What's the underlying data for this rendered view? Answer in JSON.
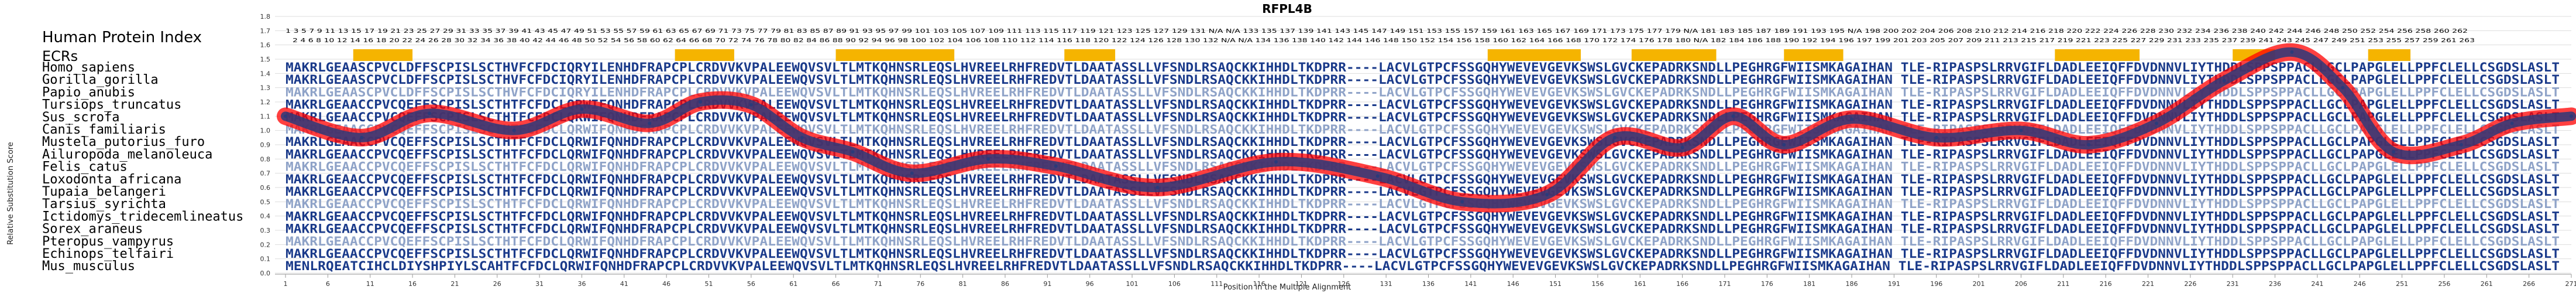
{
  "chart_data": {
    "type": "line",
    "title": "RFPL4B",
    "xlabel": "Position in the Multiple Alignment",
    "ylabel": "Relative Substitution Score",
    "xlim": [
      1,
      271
    ],
    "ylim": [
      0,
      1.8
    ],
    "y_ticks": [
      "0.0",
      "0.1",
      "0.2",
      "0.3",
      "0.4",
      "0.5",
      "0.6",
      "0.7",
      "0.8",
      "0.9",
      "1.0",
      "1.1",
      "1.2",
      "1.3",
      "1.4",
      "1.5",
      "1.6",
      "1.7",
      "1.8"
    ],
    "x_ticks": [
      1,
      6,
      11,
      16,
      21,
      26,
      31,
      36,
      41,
      46,
      51,
      56,
      61,
      66,
      71,
      76,
      81,
      86,
      91,
      96,
      101,
      106,
      111,
      116,
      121,
      126,
      131,
      136,
      141,
      146,
      151,
      156,
      161,
      166,
      171,
      176,
      181,
      186,
      191,
      196,
      201,
      206,
      211,
      216,
      221,
      226,
      231,
      236,
      241,
      246,
      251,
      256,
      261,
      266,
      271
    ],
    "grid": true,
    "series": [
      {
        "x": [
          1,
          10,
          18,
          28,
          36,
          44,
          50,
          56,
          62,
          68,
          75,
          84,
          92,
          104,
          118,
          130,
          140,
          150,
          158,
          166,
          172,
          178,
          186,
          196,
          206,
          214,
          222,
          230,
          238,
          244,
          250,
          258,
          264,
          271
        ],
        "values": [
          1.1,
          0.95,
          1.12,
          1.0,
          1.15,
          1.05,
          1.2,
          1.18,
          0.95,
          0.85,
          0.7,
          0.8,
          0.75,
          0.6,
          0.78,
          0.68,
          0.5,
          0.55,
          0.95,
          0.88,
          1.1,
          0.9,
          1.08,
          0.95,
          1.0,
          0.9,
          1.05,
          1.35,
          1.55,
          1.3,
          0.85,
          0.9,
          1.05,
          1.1
        ]
      }
    ],
    "ecr_blocks": [
      [
        9,
        16
      ],
      [
        47,
        54
      ],
      [
        66,
        80
      ],
      [
        93,
        99
      ],
      [
        143,
        154
      ],
      [
        160,
        170
      ],
      [
        178,
        185
      ],
      [
        210,
        220
      ],
      [
        231,
        236
      ],
      [
        247,
        252
      ]
    ]
  },
  "header": {
    "human_protein_index": "Human Protein Index",
    "ecrs": "ECRs",
    "index_line_1": "1 3 5 7 9 11 13 15 17 19 21 23 25 27 29 31 33 35 37 39 41 43 45 47 49 51 53 55 57 59 61 63 65 67 69 71 73 75 77 79 81 83 85 87 89 91 93 95 97 99 101 103 105 107 109 111 113 115 117 119 121 123 125 127 129 131 N/A N/A 133 135 137 139 141 143 145 147 149 151 153 155 157 159 161 163 165 167 169 171 173 175 177 179 N/A 181 183 185 187 189 191 193 195 N/A 198 200 202 204 206 208 210 212 214 216 218 220 222 224 226 228 230 232 234 236 238 240 242 244 246 248 250 252 254 256 258 260 262",
    "index_line_2": "2 4 6 8 10 12 14 16 18 20 22 24 26 28 30 32 34 36 38 40 42 44 46 48 50 52 54 56 58 60 62 64 66 68 70 72 74 76 78 80 82 84 86 88 90 92 94 96 98 100 102 104 106 108 110 112 114 116 118 120 122 124 126 128 130 132 N/A N/A 134 136 138 140 142 144 146 148 150 152 154 156 158 160 162 164 166 168 170 172 174 176 178 180 N/A 182 184 186 188 190 192 194 196 197 199 201 203 205 207 209 211 213 215 217 219 221 223 225 227 229 231 233 235 237 239 241 243 245 247 249 251 253 255 257 259 261 263"
  },
  "alignment": [
    {
      "species": "Homo_sapiens",
      "seq": "MAKRLGEAASCPVCLDFFSCPISLSCTHVFCFDCIQRYILENHDFRAPCPLCRDVVKVPALEEWQVSVLTLMTKQHNSRLEQSLHVREELRHFREDVTLDAATASSLLVFSNDLRSAQCKKIHHDLTKDPRR----LACVLGTPCFSSGQHYWEVEVGEVKSWSLGVCKEPADRKSNDLLPEGHRGFWIISMKAGAIHAN TLE-RIPASPSLRRVGIFLDADLEEIQFFDVDNNVLIYTHDDLSPPSPPACLLGCLPAPGLELLPPFCLELLCSGDSLASLT"
    },
    {
      "species": "Gorilla_gorilla",
      "seq": "MAKRLGEAASCPVCLDFFSCPISLSCTHVFCFDCIQRYILENHDFRAPCPLCRDVVKVPALEEWQVSVLTLMTKQHNSRLEQSLHVREELRHFREDVTLDAATASSLLVFSNDLRSAQCKKIHHDLTKDPRR----LACVLGTPCFSSGQHYWEVEVGEVKSWSLGVCKEPADRKSNDLLPEGHRGFWIISMKAGAIHAN TLE-RIPASPSLRRVGIFLDADLEEIQFFDVDNNVLIYTHDDLSPPSPPACLLGCLPAPGLELLPPFCLELLCSGDSLASLT"
    },
    {
      "species": "Papio_anubis",
      "seq": "MAKRLGEAASCPVCLDFFSCPISLSCTHVFCFDCIQRYILENHDFRAPCPLCRDVVKVPALEEWQVSVLTLMTKQHNSRLEQSLHVREELRHFREDVTLDAATASSLLVFSNDLRSAQCKKIHHDLTKDPRR----LACVLGTPCFSSGQHYWEVEVGEVKSWSLGVCKEPADRKSNDLLPEGHRGFWIISMKAGAIHAN TLE-RIPASPSLRRVGIFLDADLEEIQFFDVDNNVLIYTHDDLSPPSPPACLLGCLPAPGLELLPPFCLELLCSGDSLASLT"
    },
    {
      "species": "Tursiops_truncatus",
      "seq": "MAKRLGEAACCPVCQEFFSCPISLSCTHTFCFDCLQRWIFQNHDFRAPCPLCRDVVKVPALEEWQVSVLTLMTKQHNSRLEQSLHVREELRHFREDVTLDAATASSLLVFSNDLRSAQCKKIHHDLTKDPRR----LACVLGTPCFSSGQHYWEVEVGEVKSWSLGVCKEPADRKSNDLLPEGHRGFWIISMKAGAIHAN TLE-RIPASPSLRRVGIFLDADLEEIQFFDVDNNVLIYTHDDLSPPSPPACLLGCLPAPGLELLPPFCLELLCSGDSLASLT"
    },
    {
      "species": "Sus_scrofa",
      "seq": "MAKRLGEAACCPVCQEFFSCPISLSCTHTFCFDCLQRWIFQNHDFRAPCPLCRDVVKVPALEEWQVSVLTLMTKQHNSRLEQSLHVREELRHFREDVTLDAATASSLLVFSNDLRSAQCKKIHHDLTKDPRR----LACVLGTPCFSSGQHYWEVEVGEVKSWSLGVCKEPADRKSNDLLPEGHRGFWIISMKAGAIHAN TLE-RIPASPSLRRVGIFLDADLEEIQFFDVDNNVLIYTHDDLSPPSPPACLLGCLPAPGLELLPPFCLELLCSGDSLASLT"
    },
    {
      "species": "Canis_familiaris",
      "seq": "MAKRLGEAACCPVCQEFFSCPISLSCTHTFCFDCLQRWIFQNHDFRAPCPLCRDVVKVPALEEWQVSVLTLMTKQHNSRLEQSLHVREELRHFREDVTLDAATASSLLVFSNDLRSAQCKKIHHDLTKDPRR----LACVLGTPCFSSGQHYWEVEVGEVKSWSLGVCKEPADRKSNDLLPEGHRGFWIISMKAGAIHAN TLE-RIPASPSLRRVGIFLDADLEEIQFFDVDNNVLIYTHDDLSPPSPPACLLGCLPAPGLELLPPFCLELLCSGDSLASLT"
    },
    {
      "species": "Mustela_putorius_furo",
      "seq": "MAKRLGEAACCPVCQEFFSCPISLSCTHTFCFDCLQRWIFQNHDFRAPCPLCRDVVKVPALEEWQVSVLTLMTKQHNSRLEQSLHVREELRHFREDVTLDAATASSLLVFSNDLRSAQCKKIHHDLTKDPRR----LACVLGTPCFSSGQHYWEVEVGEVKSWSLGVCKEPADRKSNDLLPEGHRGFWIISMKAGAIHAN TLE-RIPASPSLRRVGIFLDADLEEIQFFDVDNNVLIYTHDDLSPPSPPACLLGCLPAPGLELLPPFCLELLCSGDSLASLT"
    },
    {
      "species": "Ailuropoda_melanoleuca",
      "seq": "MAKRLGEAACCPVCQEFFSCPISLSCTHTFCFDCLQRWIFQNHDFRAPCPLCRDVVKVPALEEWQVSVLTLMTKQHNSRLEQSLHVREELRHFREDVTLDAATASSLLVFSNDLRSAQCKKIHHDLTKDPRR----LACVLGTPCFSSGQHYWEVEVGEVKSWSLGVCKEPADRKSNDLLPEGHRGFWIISMKAGAIHAN TLE-RIPASPSLRRVGIFLDADLEEIQFFDVDNNVLIYTHDDLSPPSPPACLLGCLPAPGLELLPPFCLELLCSGDSLASLT"
    },
    {
      "species": "Felis_catus",
      "seq": "MAKRLGEAACCPVCQEFFSCPISLSCTHTFCFDCLQRWIFQNHDFRAPCPLCRDVVKVPALEEWQVSVLTLMTKQHNSRLEQSLHVREELRHFREDVTLDAATASSLLVFSNDLRSAQCKKIHHDLTKDPRR----LACVLGTPCFSSGQHYWEVEVGEVKSWSLGVCKEPADRKSNDLLPEGHRGFWIISMKAGAIHAN TLE-RIPASPSLRRVGIFLDADLEEIQFFDVDNNVLIYTHDDLSPPSPPACLLGCLPAPGLELLPPFCLELLCSGDSLASLT"
    },
    {
      "species": "Loxodonta_africana",
      "seq": "MAKRLGEAACCPVCQEFFSCPISLSCTHTFCFDCLQRWIFQNHDFRAPCPLCRDVVKVPALEEWQVSVLTLMTKQHNSRLEQSLHVREELRHFREDVTLDAATASSLLVFSNDLRSAQCKKIHHDLTKDPRR----LACVLGTPCFSSGQHYWEVEVGEVKSWSLGVCKEPADRKSNDLLPEGHRGFWIISMKAGAIHAN TLE-RIPASPSLRRVGIFLDADLEEIQFFDVDNNVLIYTHDDLSPPSPPACLLGCLPAPGLELLPPFCLELLCSGDSLASLT"
    },
    {
      "species": "Tupaia_belangeri",
      "seq": "MAKRLGEAACCPVCQEFFSCPISLSCTHTFCFDCLQRWIFQNHDFRAPCPLCRDVVKVPALEEWQVSVLTLMTKQHNSRLEQSLHVREELRHFREDVTLDAATASSLLVFSNDLRSAQCKKIHHDLTKDPRR----LACVLGTPCFSSGQHYWEVEVGEVKSWSLGVCKEPADRKSNDLLPEGHRGFWIISMKAGAIHAN TLE-RIPASPSLRRVGIFLDADLEEIQFFDVDNNVLIYTHDDLSPPSPPACLLGCLPAPGLELLPPFCLELLCSGDSLASLT"
    },
    {
      "species": "Tarsius_syrichta",
      "seq": "MAKRLGEAACCPVCQEFFSCPISLSCTHTFCFDCLQRWIFQNHDFRAPCPLCRDVVKVPALEEWQVSVLTLMTKQHNSRLEQSLHVREELRHFREDVTLDAATASSLLVFSNDLRSAQCKKIHHDLTKDPRR----LACVLGTPCFSSGQHYWEVEVGEVKSWSLGVCKEPADRKSNDLLPEGHRGFWIISMKAGAIHAN TLE-RIPASPSLRRVGIFLDADLEEIQFFDVDNNVLIYTHDDLSPPSPPACLLGCLPAPGLELLPPFCLELLCSGDSLASLT"
    },
    {
      "species": "Ictidomys_tridecemlineatus",
      "seq": "MAKRLGEAACCPVCQEFFSCPISLSCTHTFCFDCLQRWIFQNHDFRAPCPLCRDVVKVPALEEWQVSVLTLMTKQHNSRLEQSLHVREELRHFREDVTLDAATASSLLVFSNDLRSAQCKKIHHDLTKDPRR----LACVLGTPCFSSGQHYWEVEVGEVKSWSLGVCKEPADRKSNDLLPEGHRGFWIISMKAGAIHAN TLE-RIPASPSLRRVGIFLDADLEEIQFFDVDNNVLIYTHDDLSPPSPPACLLGCLPAPGLELLPPFCLELLCSGDSLASLT"
    },
    {
      "species": "Sorex_araneus",
      "seq": "MAKRLGEAACCPVCQEFFSCPISLSCTHTFCFDCLQRWIFQNHDFRAPCPLCRDVVKVPALEEWQVSVLTLMTKQHNSRLEQSLHVREELRHFREDVTLDAATASSLLVFSNDLRSAQCKKIHHDLTKDPRR----LACVLGTPCFSSGQHYWEVEVGEVKSWSLGVCKEPADRKSNDLLPEGHRGFWIISMKAGAIHAN TLE-RIPASPSLRRVGIFLDADLEEIQFFDVDNNVLIYTHDDLSPPSPPACLLGCLPAPGLELLPPFCLELLCSGDSLASLT"
    },
    {
      "species": "Pteropus_vampyrus",
      "seq": "MAKRLGEAACCPVCQEFFSCPISLSCTHTFCFDCLQRWIFQNHDFRAPCPLCRDVVKVPALEEWQVSVLTLMTKQHNSRLEQSLHVREELRHFREDVTLDAATASSLLVFSNDLRSAQCKKIHHDLTKDPRR----LACVLGTPCFSSGQHYWEVEVGEVKSWSLGVCKEPADRKSNDLLPEGHRGFWIISMKAGAIHAN TLE-RIPASPSLRRVGIFLDADLEEIQFFDVDNNVLIYTHDDLSPPSPPACLLGCLPAPGLELLPPFCLELLCSGDSLASLT"
    },
    {
      "species": "Echinops_telfairi",
      "seq": "MAKRLGEAACCPVCQEFFSCPISLSCTHTFCFDCLQRWIFQNHDFRAPCPLCRDVVKVPALEEWQVSVLTLMTKQHNSRLEQSLHVREELRHFREDVTLDAATASSLLVFSNDLRSAQCKKIHHDLTKDPRR----LACVLGTPCFSSGQHYWEVEVGEVKSWSLGVCKEPADRKSNDLLPEGHRGFWIISMKAGAIHAN TLE-RIPASPSLRRVGIFLDADLEEIQFFDVDNNVLIYTHDDLSPPSPPACLLGCLPAPGLELLPPFCLELLCSGDSLASLT"
    },
    {
      "species": "Mus_musculus",
      "seq": "MENLRQEATCIHCLDIYSHPIYLSCAHTFCFDCLQRWIFQNHDFRAPCPLCRDVVKVPALEEWQVSVLTLMTKQHNSRLEQSLHVREELRHFREDVTLDAATASSLLVFSNDLRSAQCKKIHHDLTKDPRR----LACVLGTPCFSSGQHYWEVEVGEVKSWSLGVCKEPADRKSNDLLPEGHRGFWIISMKAGAIHAN TLE-RIPASPSLRRVGIFLDADLEEIQFFDVDNNVLIYTHDDLSPPSPPACLLGCLPAPGLELLPPFCLELLCSGDSLASLT"
    }
  ],
  "colors": {
    "curve_outer": "#ff0000",
    "curve_inner": "#2b3a7a",
    "ecr_block": "#f5b400",
    "seq_dark": "#1a3a8a",
    "seq_light": "#8fa3c8",
    "grid": "#dddddd"
  }
}
